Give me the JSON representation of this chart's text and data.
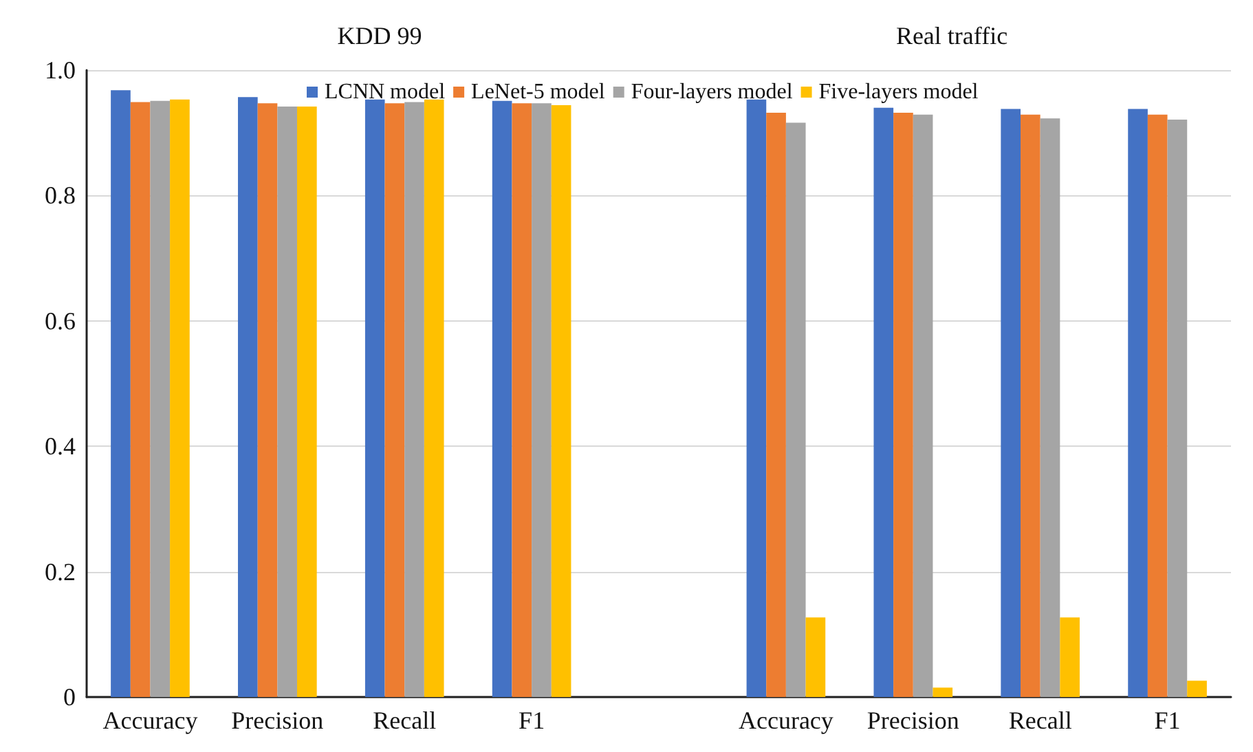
{
  "chart_data": {
    "type": "bar",
    "categories": [
      "Accuracy",
      "Precision",
      "Recall",
      "F1",
      null,
      "Accuracy",
      "Precision",
      "Recall",
      "F1"
    ],
    "series": [
      {
        "name": "LCNN model",
        "color": "#4472c4",
        "values": [
          0.968,
          0.957,
          0.953,
          0.951,
          null,
          0.953,
          0.94,
          0.938,
          0.938
        ]
      },
      {
        "name": "LeNet-5 model",
        "color": "#ed7d31",
        "values": [
          0.949,
          0.947,
          0.947,
          0.947,
          null,
          0.932,
          0.932,
          0.929,
          0.929
        ]
      },
      {
        "name": "Four-layers model",
        "color": "#a5a5a5",
        "values": [
          0.951,
          0.942,
          0.949,
          0.947,
          null,
          0.916,
          0.929,
          0.923,
          0.921
        ]
      },
      {
        "name": "Five-layers model",
        "color": "#ffc000",
        "values": [
          0.953,
          0.942,
          0.953,
          0.944,
          null,
          0.127,
          0.015,
          0.127,
          0.026
        ]
      }
    ],
    "ylim": [
      0,
      1
    ],
    "yticks": [
      0,
      0.2,
      0.4,
      0.6,
      0.8,
      {
        "value": 1,
        "label": "1.0"
      }
    ],
    "grid": "y",
    "legend": "top",
    "annotations": [
      "KDD 99",
      "Real traffic"
    ]
  }
}
